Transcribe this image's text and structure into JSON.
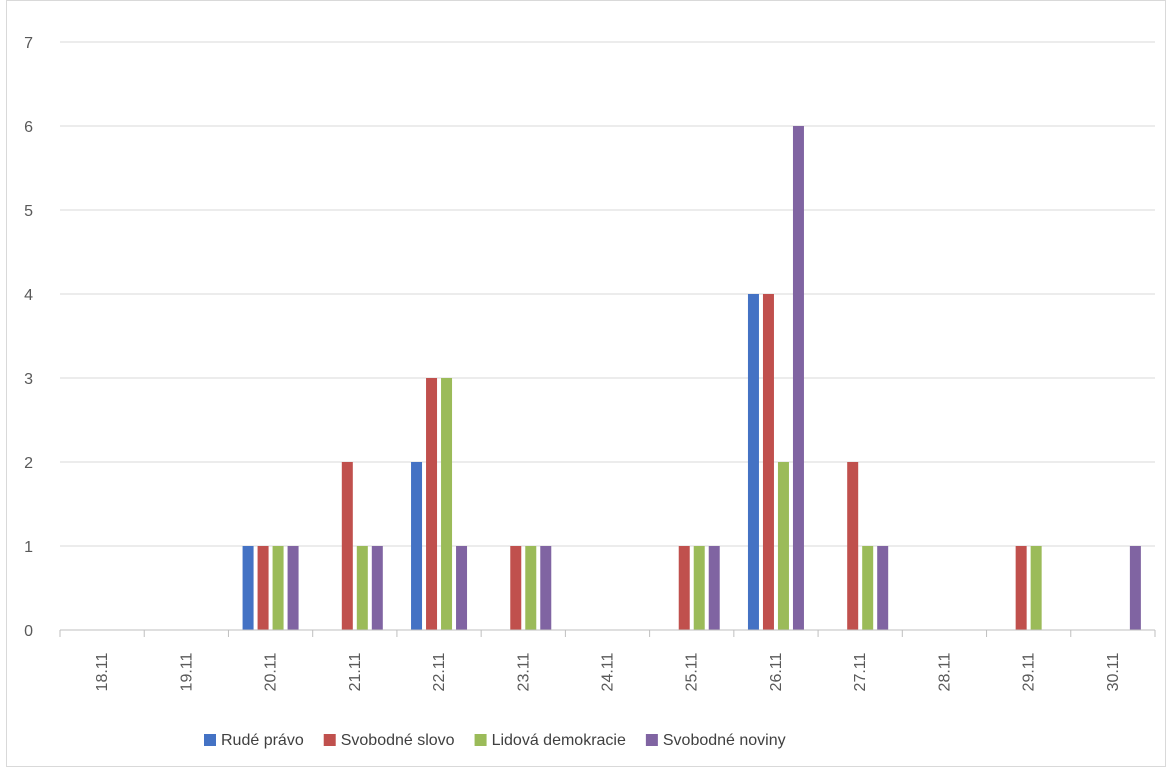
{
  "chart_data": {
    "type": "bar",
    "title": "",
    "xlabel": "",
    "ylabel": "",
    "categories": [
      "18.11",
      "19.11",
      "20.11",
      "21.11",
      "22.11",
      "23.11",
      "24.11",
      "25.11",
      "26.11",
      "27.11",
      "28.11",
      "29.11",
      "30.11"
    ],
    "ylim": [
      0,
      7
    ],
    "yticks": [
      0,
      1,
      2,
      3,
      4,
      5,
      6,
      7
    ],
    "grid": true,
    "legend_position": "bottom",
    "series": [
      {
        "name": "Rudé právo",
        "color": "#4472C4",
        "values": [
          0,
          0,
          1,
          0,
          2,
          0,
          0,
          0,
          4,
          0,
          0,
          0,
          0
        ]
      },
      {
        "name": "Svobodné slovo",
        "color": "#C0504D",
        "values": [
          0,
          0,
          1,
          2,
          3,
          1,
          0,
          1,
          4,
          2,
          0,
          1,
          0
        ]
      },
      {
        "name": "Lidová demokracie",
        "color": "#9BBB59",
        "values": [
          0,
          0,
          1,
          1,
          3,
          1,
          0,
          1,
          2,
          1,
          0,
          1,
          0
        ]
      },
      {
        "name": "Svobodné noviny",
        "color": "#8064A2",
        "values": [
          0,
          0,
          1,
          1,
          1,
          1,
          0,
          1,
          6,
          1,
          0,
          0,
          1
        ]
      }
    ]
  }
}
